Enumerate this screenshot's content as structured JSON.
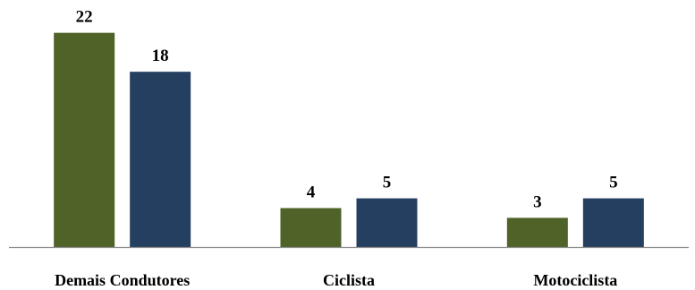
{
  "chart_data": {
    "type": "bar",
    "categories": [
      "Demais Condutores",
      "Ciclista",
      "Motociclista"
    ],
    "series": [
      {
        "values": [
          22,
          4,
          3
        ],
        "color": "#4F6228"
      },
      {
        "values": [
          18,
          5,
          5
        ],
        "color": "#243F60"
      }
    ],
    "ylim": [
      0,
      25
    ],
    "grid": false,
    "legend": "none",
    "axis_color": "#8c8c8c"
  }
}
